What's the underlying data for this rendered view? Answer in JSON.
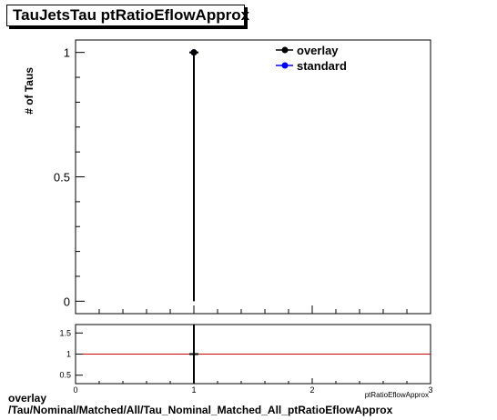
{
  "title": "TauJetsTau ptRatioEflowApprox",
  "footer": {
    "line1": "overlay",
    "line2": "/Tau/Nominal/Matched/All/Tau_Nominal_Matched_All_ptRatioEflowApprox"
  },
  "chart_data": [
    {
      "type": "scatter",
      "panel": "main",
      "title": "TauJetsTau ptRatioEflowApprox",
      "ylabel": "# of Taus",
      "xlim": [
        0,
        3
      ],
      "ylim": [
        -0.05,
        1.05
      ],
      "yticks": [
        {
          "value": 0,
          "label": "0"
        },
        {
          "value": 0.5,
          "label": "0.5"
        },
        {
          "value": 1,
          "label": "1"
        }
      ],
      "legend_placement": "top-right",
      "series": [
        {
          "name": "overlay",
          "color": "#000000",
          "points": [
            {
              "x": 1.0,
              "y": 1.0,
              "yerr_low": 1.0,
              "yerr_high": 0.0
            }
          ]
        },
        {
          "name": "standard",
          "color": "#0000ff",
          "points": [
            {
              "x": 1.0,
              "y": 1.0
            }
          ]
        }
      ]
    },
    {
      "type": "line",
      "panel": "ratio",
      "xlabel": "ptRatioEflowApprox",
      "xlim": [
        0,
        3
      ],
      "ylim": [
        0.3,
        1.7
      ],
      "xticks": [
        {
          "value": 0,
          "label": "0"
        },
        {
          "value": 1,
          "label": "1"
        },
        {
          "value": 2,
          "label": "2"
        },
        {
          "value": 3,
          "label": "3"
        }
      ],
      "yticks": [
        {
          "value": 0.5,
          "label": "0.5"
        },
        {
          "value": 1,
          "label": "1"
        },
        {
          "value": 1.5,
          "label": "1.5"
        }
      ],
      "reference_line": {
        "y": 1,
        "color": "#cc0000"
      },
      "series": [
        {
          "name": "overlay",
          "color": "#000000",
          "points": [
            {
              "x": 1.0,
              "y": 1.0
            }
          ]
        }
      ]
    }
  ]
}
